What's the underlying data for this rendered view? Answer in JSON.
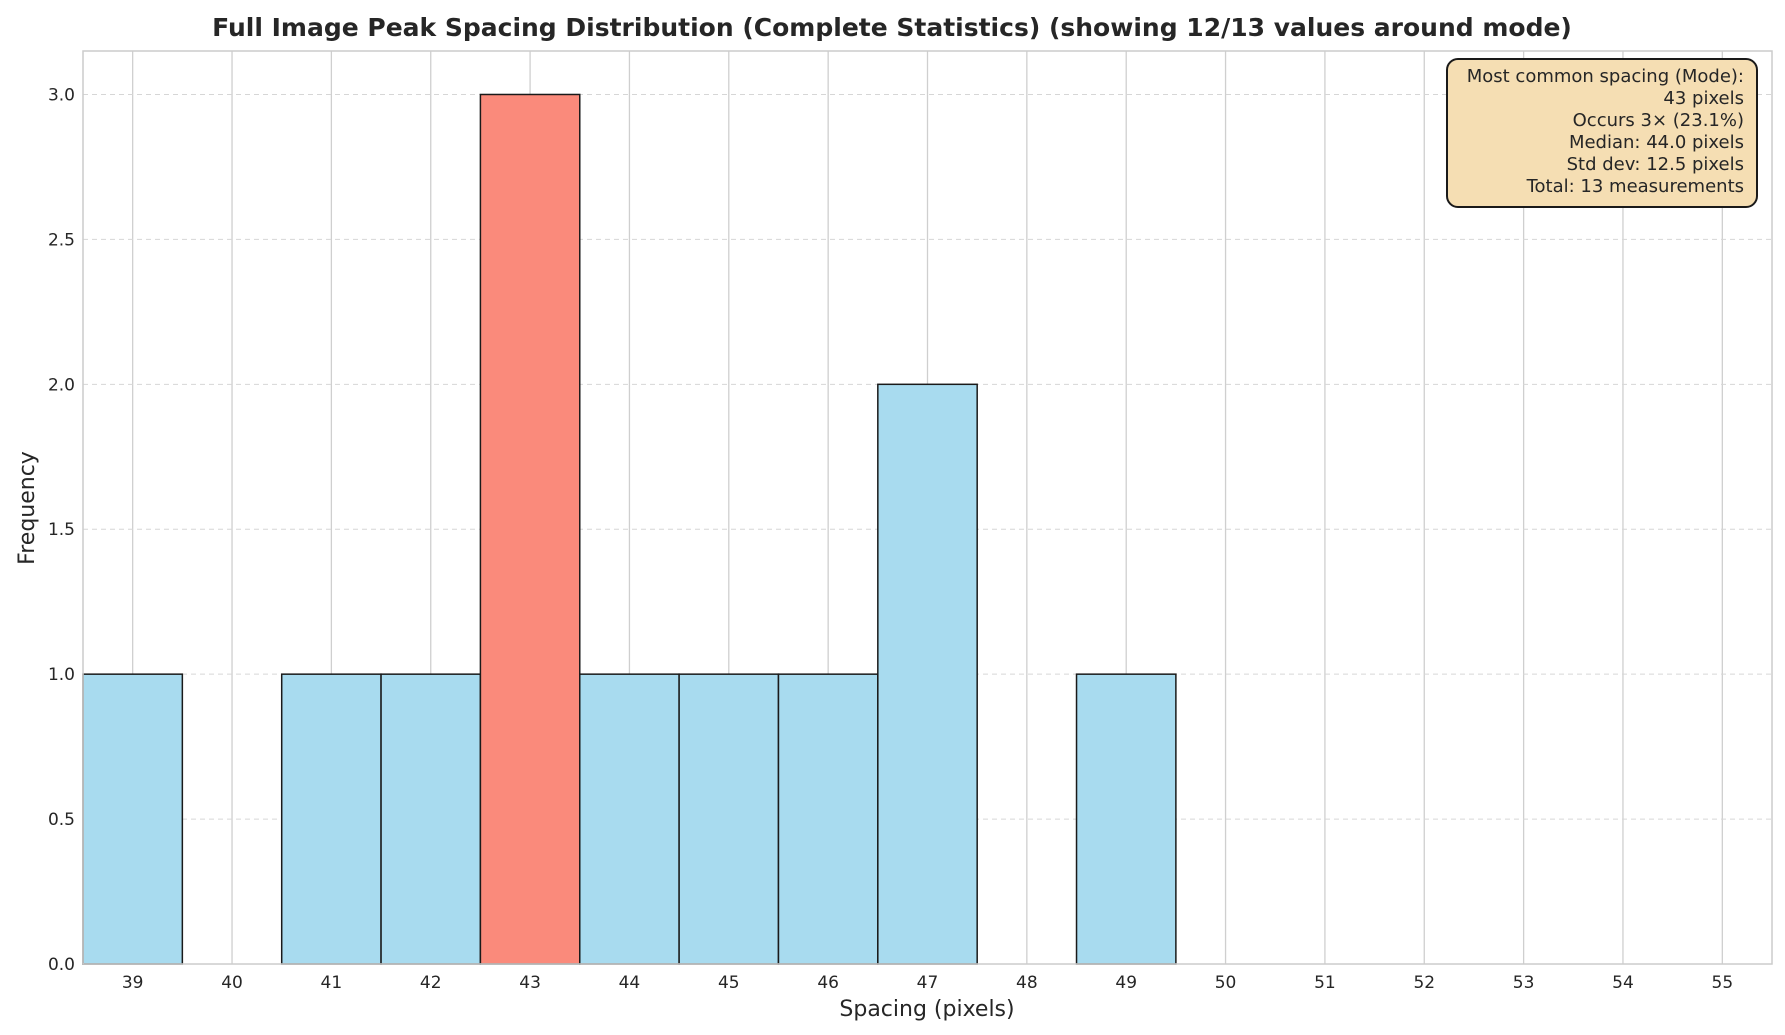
{
  "chart_data": {
    "type": "bar",
    "title": "Full Image Peak Spacing Distribution (Complete Statistics) (showing 12/13 values around mode)",
    "xlabel": "Spacing (pixels)",
    "ylabel": "Frequency",
    "x_ticks": [
      39,
      40,
      41,
      42,
      43,
      44,
      45,
      46,
      47,
      48,
      49,
      50,
      51,
      52,
      53,
      54,
      55
    ],
    "y_ticks": [
      "0.0",
      "0.5",
      "1.0",
      "1.5",
      "2.0",
      "2.5",
      "3.0"
    ],
    "xlim": [
      38.5,
      55.5
    ],
    "ylim": [
      0,
      3.15
    ],
    "grid": true,
    "bars": [
      {
        "x": 39,
        "value": 1
      },
      {
        "x": 41,
        "value": 1
      },
      {
        "x": 42,
        "value": 1
      },
      {
        "x": 43,
        "value": 3,
        "highlight": true
      },
      {
        "x": 44,
        "value": 1
      },
      {
        "x": 45,
        "value": 1
      },
      {
        "x": 46,
        "value": 1
      },
      {
        "x": 47,
        "value": 2
      },
      {
        "x": 49,
        "value": 1
      }
    ],
    "colors": {
      "bar": "#a8dbef",
      "highlight": "#fa8a7b"
    },
    "annotation": {
      "placement": "top-right",
      "lines": [
        "Most common spacing (Mode):",
        "43 pixels",
        "Occurs 3× (23.1%)",
        "Median: 44.0 pixels",
        "Std dev: 12.5 pixels",
        "Total: 13 measurements"
      ]
    }
  }
}
